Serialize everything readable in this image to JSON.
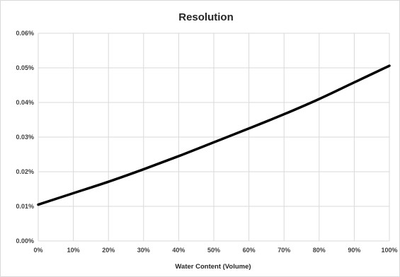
{
  "chart_data": {
    "type": "line",
    "title": "Resolution",
    "xlabel": "Water Content (Volume)",
    "ylabel": "",
    "xlim": [
      0,
      100
    ],
    "ylim": [
      0,
      0.06
    ],
    "x_ticks": [
      "0%",
      "10%",
      "20%",
      "30%",
      "40%",
      "50%",
      "60%",
      "70%",
      "80%",
      "90%",
      "100%"
    ],
    "y_ticks": [
      "0.00%",
      "0.01%",
      "0.02%",
      "0.03%",
      "0.04%",
      "0.05%",
      "0.06%"
    ],
    "grid": true,
    "legend": "none",
    "series": [
      {
        "color": "#000000",
        "x": [
          0,
          10,
          20,
          30,
          40,
          50,
          60,
          70,
          80,
          90,
          100
        ],
        "y": [
          0.0105,
          0.0138,
          0.0171,
          0.0207,
          0.0245,
          0.0285,
          0.0325,
          0.0366,
          0.041,
          0.0458,
          0.0506
        ]
      }
    ]
  }
}
